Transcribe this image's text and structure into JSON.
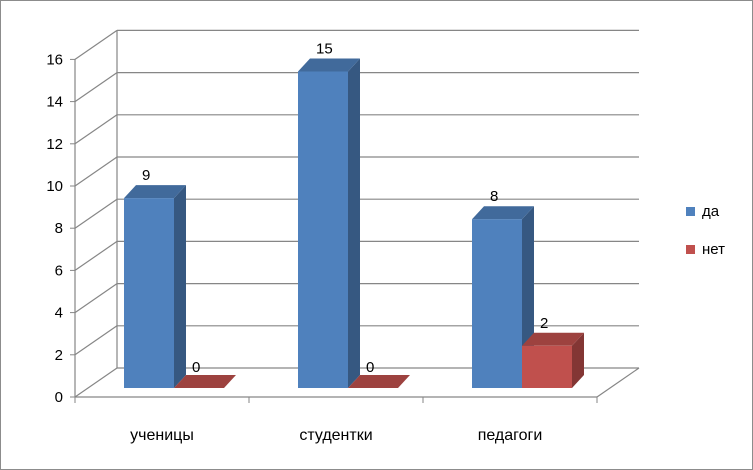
{
  "chart_data": {
    "type": "bar",
    "three_d": true,
    "categories": [
      "ученицы",
      "студентки",
      "педагоги"
    ],
    "series": [
      {
        "name": "да",
        "values": [
          9,
          15,
          8
        ],
        "color": "#4F81BD"
      },
      {
        "name": "нет",
        "values": [
          0,
          0,
          2
        ],
        "color": "#C0504D"
      }
    ],
    "ylim": [
      0,
      16
    ],
    "yticks": [
      0,
      2,
      4,
      6,
      8,
      10,
      12,
      14,
      16
    ],
    "title": "",
    "xlabel": "",
    "ylabel": "",
    "grid": true,
    "legend_position": "right",
    "data_labels": true
  }
}
